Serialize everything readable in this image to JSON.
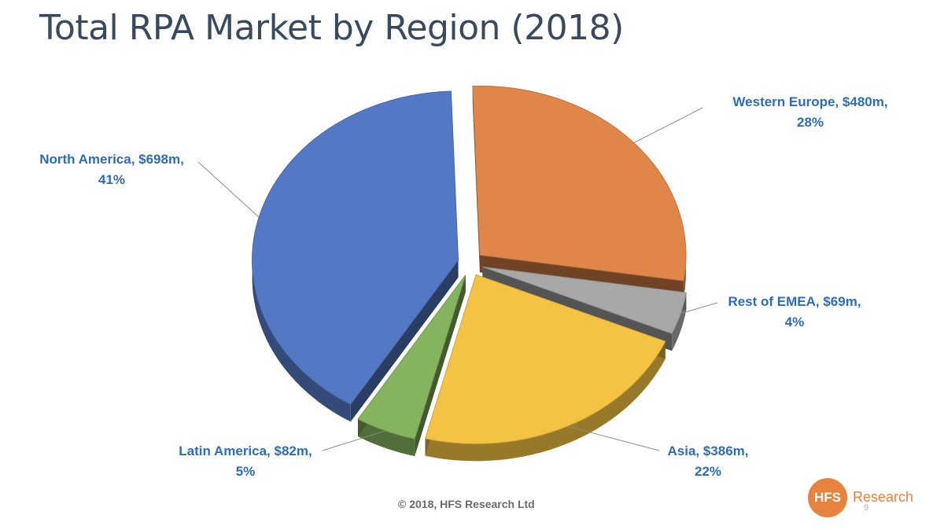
{
  "slide": {
    "title": "Total RPA Market by Region (2018)",
    "footer": "© 2018, HFS Research Ltd",
    "page_number": "9",
    "logo": {
      "mark": "HFS",
      "text": "Research",
      "color": "#e8823f"
    }
  },
  "chart_data": {
    "type": "pie",
    "title": "Total RPA Market by Region (2018)",
    "unit": "$m",
    "slices": [
      {
        "name": "Western Europe",
        "value": 480,
        "percent": 28,
        "label_line1": "Western Europe, $480m,",
        "label_line2": "28%",
        "color": "#e0864a"
      },
      {
        "name": "Rest of EMEA",
        "value": 69,
        "percent": 4,
        "label_line1": "Rest of EMEA, $69m,",
        "label_line2": "4%",
        "color": "#a8a8a8"
      },
      {
        "name": "Asia",
        "value": 386,
        "percent": 22,
        "label_line1": "Asia, $386m,",
        "label_line2": "22%",
        "color": "#f5c344"
      },
      {
        "name": "Latin America",
        "value": 82,
        "percent": 5,
        "label_line1": "Latin America, $82m,",
        "label_line2": "5%",
        "color": "#85b35e"
      },
      {
        "name": "North America",
        "value": 698,
        "percent": 41,
        "label_line1": "North America, $698m,",
        "label_line2": "41%",
        "color": "#5479c4"
      }
    ],
    "data_labels": "outside-with-leader-lines",
    "style": "3d-exploded"
  }
}
